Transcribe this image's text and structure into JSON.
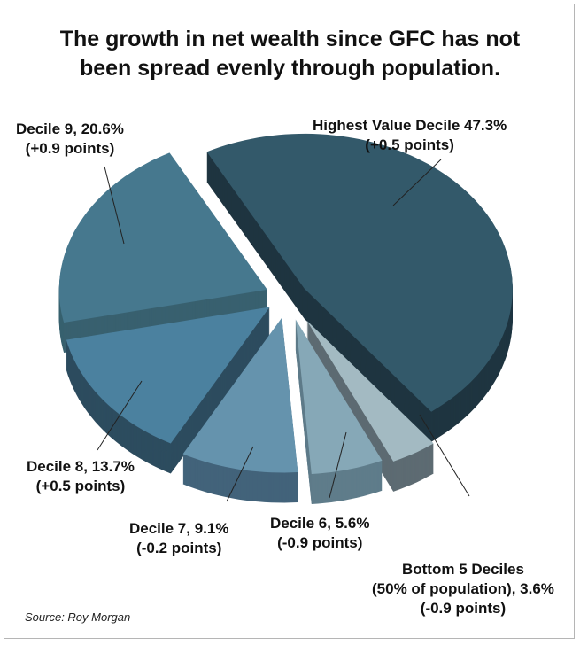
{
  "chart_data": {
    "type": "pie",
    "title_line1": "The growth in net wealth since GFC has not",
    "title_line2": "been spread evenly through population.",
    "slices": [
      {
        "name": "Highest Value Decile",
        "value": 47.3,
        "change": "+0.5",
        "label1": "Highest Value Decile 47.3%",
        "label2": "(+0.5 points)",
        "top": "#33596a",
        "side": "#1f3540"
      },
      {
        "name": "Bottom 5 Deciles",
        "value": 3.6,
        "change": "-0.9",
        "label1": "Bottom 5 Deciles",
        "label2": "(50% of population), 3.6%",
        "label3": "(-0.9 points)",
        "top": "#a3bac2",
        "side": "#5d6b72"
      },
      {
        "name": "Decile 6",
        "value": 5.6,
        "change": "-0.9",
        "label1": "Decile 6, 5.6%",
        "label2": "(-0.9 points)",
        "top": "#86a8b7",
        "side": "#5f7c8a"
      },
      {
        "name": "Decile 7",
        "value": 9.1,
        "change": "-0.2",
        "label1": "Decile 7, 9.1%",
        "label2": "(-0.2 points)",
        "top": "#6593ad",
        "side": "#42637a"
      },
      {
        "name": "Decile 8",
        "value": 13.7,
        "change": "+0.5",
        "label1": "Decile 8, 13.7%",
        "label2": "(+0.5 points)",
        "top": "#4b819f",
        "side": "#2d4c5f"
      },
      {
        "name": "Decile 9",
        "value": 20.6,
        "change": "+0.9",
        "label1": "Decile 9, 20.6%",
        "label2": "(+0.9 points)",
        "top": "#46788e",
        "side": "#38606f"
      }
    ],
    "source": "Source: Roy Morgan"
  }
}
